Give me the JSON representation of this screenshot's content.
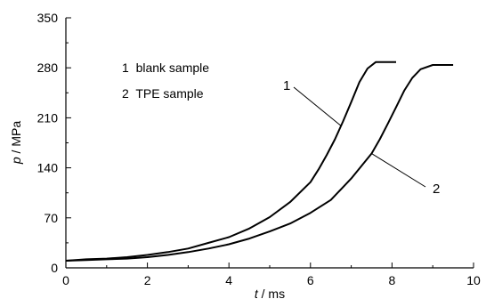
{
  "chart_data": {
    "type": "line",
    "xlabel": {
      "var": "t",
      "unit": " / ms"
    },
    "ylabel": {
      "var": "p",
      "unit": " / MPa"
    },
    "xlim": [
      0,
      10
    ],
    "ylim": [
      0,
      350
    ],
    "xticks": [
      "0",
      "2",
      "4",
      "6",
      "8",
      "10"
    ],
    "yticks": [
      "0",
      "70",
      "140",
      "210",
      "280",
      "350"
    ],
    "grid": false,
    "legend": {
      "placement": "top-left",
      "entries": [
        "1  blank sample",
        "2  TPE sample"
      ]
    },
    "callouts": [
      "1",
      "2"
    ],
    "series": [
      {
        "name": "1  blank sample",
        "callout": "1",
        "x": [
          0,
          0.5,
          1,
          1.5,
          2,
          2.5,
          3,
          3.5,
          4,
          4.5,
          5,
          5.5,
          6,
          6.2,
          6.4,
          6.6,
          6.8,
          7.0,
          7.2,
          7.4,
          7.6,
          8.1
        ],
        "y": [
          10,
          12,
          13,
          15,
          18,
          22,
          27,
          35,
          43,
          55,
          71,
          92,
          120,
          138,
          158,
          180,
          205,
          232,
          260,
          279,
          288,
          288
        ]
      },
      {
        "name": "2  TPE sample",
        "callout": "2",
        "x": [
          0,
          0.5,
          1,
          1.5,
          2,
          2.5,
          3,
          3.5,
          4,
          4.5,
          5,
          5.5,
          6,
          6.5,
          7,
          7.5,
          7.7,
          7.9,
          8.1,
          8.3,
          8.5,
          8.7,
          9.0,
          9.5
        ],
        "y": [
          10,
          11,
          12,
          13,
          15,
          18,
          22,
          27,
          33,
          41,
          51,
          62,
          77,
          95,
          125,
          160,
          180,
          202,
          225,
          248,
          266,
          278,
          284,
          284
        ]
      }
    ]
  }
}
